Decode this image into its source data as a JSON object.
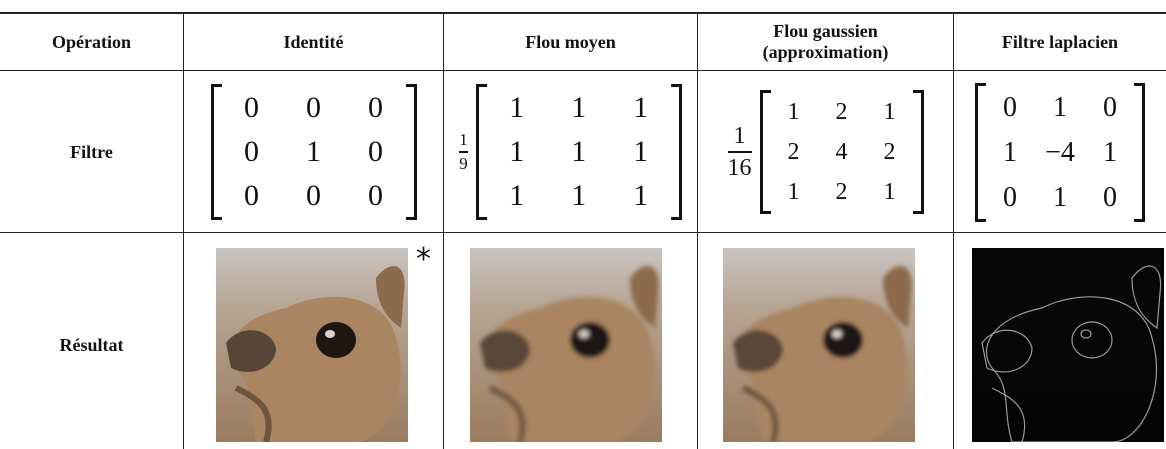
{
  "table": {
    "header": [
      "Opération",
      "Identité",
      "Flou moyen",
      [
        "Flou gaussien",
        "(approximation)"
      ],
      "Filtre laplacien"
    ],
    "rows": [
      {
        "label": "Filtre",
        "filters": [
          {
            "matrix": [
              [
                0,
                0,
                0
              ],
              [
                0,
                1,
                0
              ],
              [
                0,
                0,
                0
              ]
            ]
          },
          {
            "factor": {
              "numerator": 1,
              "denominator": 9
            },
            "matrix": [
              [
                1,
                1,
                1
              ],
              [
                1,
                1,
                1
              ],
              [
                1,
                1,
                1
              ]
            ]
          },
          {
            "factor": {
              "numerator": 1,
              "denominator": 16
            },
            "matrix": [
              [
                1,
                2,
                1
              ],
              [
                2,
                4,
                2
              ],
              [
                1,
                2,
                1
              ]
            ]
          },
          {
            "matrix": [
              [
                0,
                1,
                0
              ],
              [
                1,
                "−4",
                1
              ],
              [
                0,
                1,
                0
              ]
            ]
          }
        ]
      },
      {
        "label": "Résultat",
        "note": "*"
      }
    ]
  }
}
